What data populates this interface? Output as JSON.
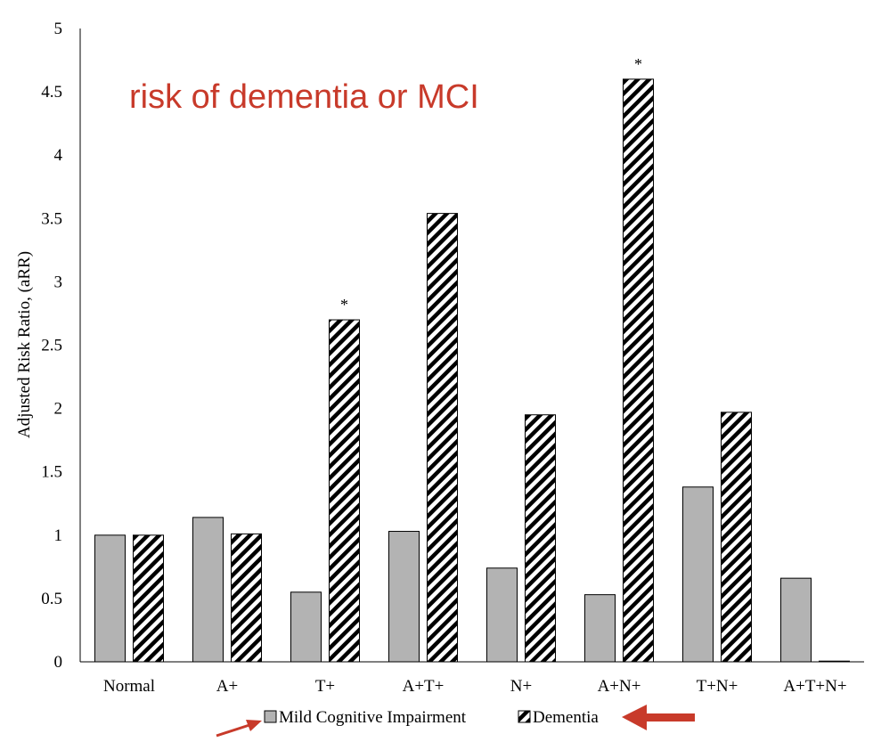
{
  "chart_data": {
    "type": "bar",
    "categories": [
      "Normal",
      "A+",
      "T+",
      "A+T+",
      "N+",
      "A+N+",
      "T+N+",
      "A+T+N+"
    ],
    "series": [
      {
        "name": "Mild Cognitive Impairment",
        "values": [
          1.0,
          1.14,
          0.55,
          1.03,
          0.74,
          0.53,
          1.38,
          0.66
        ],
        "color": "#b3b3b3",
        "pattern": "solid"
      },
      {
        "name": "Dementia",
        "values": [
          1.0,
          1.01,
          2.7,
          3.54,
          1.95,
          4.6,
          1.97,
          0.0
        ],
        "color": "#000000",
        "pattern": "diagonal-stripes"
      }
    ],
    "significant": [
      {
        "category": "T+",
        "series": "Dementia",
        "marker": "*"
      },
      {
        "category": "A+N+",
        "series": "Dementia",
        "marker": "*"
      }
    ],
    "ylabel": "Adjusted Risk Ratio, (aRR)",
    "xlabel": "",
    "ylim": [
      0,
      5
    ],
    "yticks": [
      "0",
      "0.5",
      "1",
      "1.5",
      "2",
      "2.5",
      "3",
      "3.5",
      "4",
      "4.5",
      "5"
    ],
    "grid": false,
    "legend_position": "bottom",
    "annotation": "risk of dementia or MCI"
  }
}
